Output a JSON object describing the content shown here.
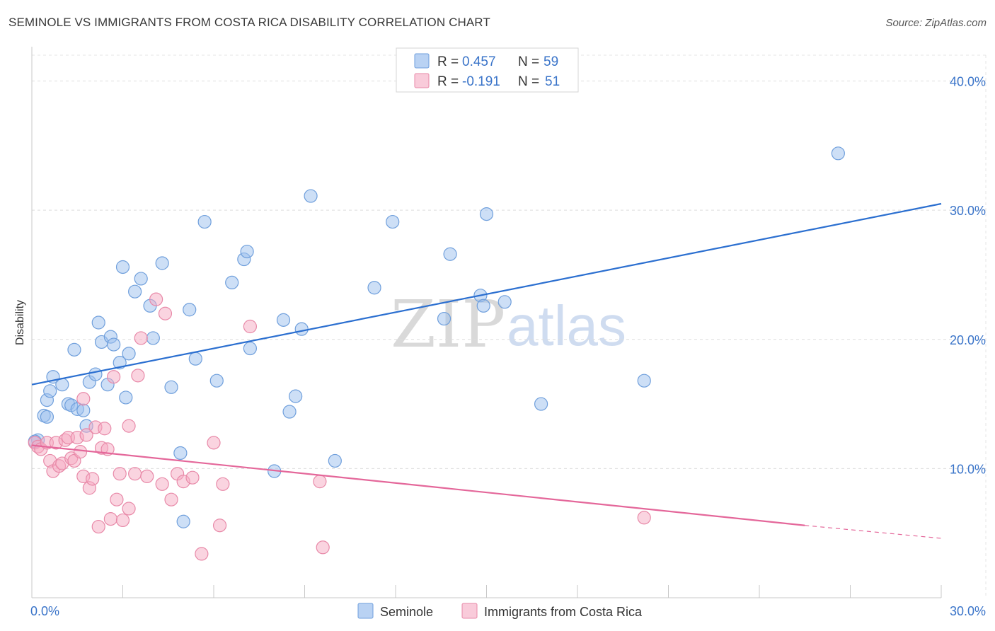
{
  "title": "SEMINOLE VS IMMIGRANTS FROM COSTA RICA DISABILITY CORRELATION CHART",
  "source": "Source: ZipAtlas.com",
  "watermark": {
    "zip": "ZIP",
    "atlas": "atlas"
  },
  "legend": {
    "rows": [
      {
        "r_label": "R =",
        "r_value": "0.457",
        "n_label": "N =",
        "n_value": "59",
        "color": "#9bbfee"
      },
      {
        "r_label": "R =",
        "r_value": "-0.191",
        "n_label": "N =",
        "n_value": "51",
        "color": "#f5a9c2"
      }
    ]
  },
  "chart_data": {
    "type": "scatter",
    "title": "SEMINOLE VS IMMIGRANTS FROM COSTA RICA DISABILITY CORRELATION CHART",
    "xlabel": "",
    "ylabel": "Disability",
    "xlim": [
      0,
      30
    ],
    "ylim": [
      0,
      42
    ],
    "x_tick_labels": [
      "0.0%",
      "30.0%"
    ],
    "y_tick_labels": [
      "10.0%",
      "20.0%",
      "30.0%",
      "40.0%"
    ],
    "y_ticks": [
      10,
      20,
      30,
      40
    ],
    "grid": true,
    "legend_position": "top-center",
    "series": [
      {
        "name": "Seminole",
        "color": "#9bbfee",
        "stroke": "#6f9fdc",
        "trend": {
          "x0": 0,
          "y0": 16.5,
          "x1": 30,
          "y1": 30.5,
          "color": "#2b6fd0"
        },
        "points": [
          [
            0.2,
            12.2
          ],
          [
            0.4,
            14.1
          ],
          [
            0.5,
            14.0
          ],
          [
            0.5,
            15.3
          ],
          [
            0.6,
            16.0
          ],
          [
            0.7,
            17.1
          ],
          [
            1.0,
            16.5
          ],
          [
            1.2,
            15.0
          ],
          [
            1.3,
            14.9
          ],
          [
            1.4,
            19.2
          ],
          [
            1.5,
            14.6
          ],
          [
            1.7,
            14.5
          ],
          [
            1.8,
            13.3
          ],
          [
            1.9,
            16.7
          ],
          [
            2.1,
            17.3
          ],
          [
            2.2,
            21.3
          ],
          [
            2.3,
            19.8
          ],
          [
            2.5,
            16.5
          ],
          [
            2.6,
            20.2
          ],
          [
            2.7,
            19.6
          ],
          [
            2.9,
            18.2
          ],
          [
            3.0,
            25.6
          ],
          [
            3.1,
            15.5
          ],
          [
            3.2,
            18.9
          ],
          [
            3.4,
            23.7
          ],
          [
            3.6,
            24.7
          ],
          [
            3.9,
            22.6
          ],
          [
            4.0,
            20.1
          ],
          [
            4.3,
            25.9
          ],
          [
            4.6,
            16.3
          ],
          [
            4.9,
            11.2
          ],
          [
            5.0,
            5.9
          ],
          [
            5.2,
            22.3
          ],
          [
            5.4,
            18.5
          ],
          [
            5.7,
            29.1
          ],
          [
            6.1,
            16.8
          ],
          [
            6.6,
            24.4
          ],
          [
            7.0,
            26.2
          ],
          [
            7.1,
            26.8
          ],
          [
            7.2,
            19.3
          ],
          [
            8.0,
            9.8
          ],
          [
            8.3,
            21.5
          ],
          [
            8.5,
            14.4
          ],
          [
            8.7,
            15.6
          ],
          [
            8.9,
            20.8
          ],
          [
            9.2,
            31.1
          ],
          [
            10.0,
            10.6
          ],
          [
            11.3,
            24.0
          ],
          [
            11.9,
            29.1
          ],
          [
            13.6,
            21.6
          ],
          [
            13.8,
            26.6
          ],
          [
            14.8,
            23.4
          ],
          [
            14.9,
            22.6
          ],
          [
            15.0,
            29.7
          ],
          [
            15.6,
            22.9
          ],
          [
            16.8,
            15.0
          ],
          [
            20.2,
            16.8
          ],
          [
            26.6,
            34.4
          ],
          [
            0.1,
            12.1
          ]
        ]
      },
      {
        "name": "Immigrants from Costa Rica",
        "color": "#f5a9c2",
        "stroke": "#e889a8",
        "trend": {
          "x0": 0,
          "y0": 11.8,
          "x1": 25.5,
          "y1": 5.6,
          "dash_x1": 30,
          "dash_y1": 4.6,
          "color": "#e4679a"
        },
        "points": [
          [
            0.1,
            12.0
          ],
          [
            0.2,
            11.7
          ],
          [
            0.3,
            11.5
          ],
          [
            0.5,
            12.0
          ],
          [
            0.6,
            10.6
          ],
          [
            0.7,
            9.8
          ],
          [
            0.8,
            12.0
          ],
          [
            0.9,
            10.2
          ],
          [
            1.0,
            10.4
          ],
          [
            1.1,
            12.2
          ],
          [
            1.2,
            12.4
          ],
          [
            1.3,
            10.8
          ],
          [
            1.4,
            10.6
          ],
          [
            1.5,
            12.4
          ],
          [
            1.6,
            11.3
          ],
          [
            1.7,
            15.4
          ],
          [
            1.7,
            9.4
          ],
          [
            1.8,
            12.6
          ],
          [
            1.9,
            8.5
          ],
          [
            2.0,
            9.2
          ],
          [
            2.1,
            13.2
          ],
          [
            2.2,
            5.5
          ],
          [
            2.3,
            11.6
          ],
          [
            2.4,
            13.1
          ],
          [
            2.5,
            11.5
          ],
          [
            2.6,
            6.1
          ],
          [
            2.7,
            17.1
          ],
          [
            2.8,
            7.6
          ],
          [
            2.9,
            9.6
          ],
          [
            3.0,
            6.0
          ],
          [
            3.2,
            6.9
          ],
          [
            3.2,
            13.3
          ],
          [
            3.4,
            9.6
          ],
          [
            3.5,
            17.2
          ],
          [
            3.6,
            20.1
          ],
          [
            3.8,
            9.4
          ],
          [
            4.1,
            23.1
          ],
          [
            4.3,
            8.8
          ],
          [
            4.4,
            22.0
          ],
          [
            4.6,
            7.6
          ],
          [
            4.8,
            9.6
          ],
          [
            5.0,
            9.0
          ],
          [
            5.3,
            9.3
          ],
          [
            5.6,
            3.4
          ],
          [
            6.0,
            12.0
          ],
          [
            6.2,
            5.6
          ],
          [
            6.3,
            8.8
          ],
          [
            7.2,
            21.0
          ],
          [
            9.5,
            9.0
          ],
          [
            9.6,
            3.9
          ],
          [
            20.2,
            6.2
          ]
        ]
      }
    ]
  },
  "bottom_legend": {
    "items": [
      {
        "label": "Seminole",
        "color": "#9bbfee"
      },
      {
        "label": "Immigrants from Costa Rica",
        "color": "#f5a9c2"
      }
    ]
  }
}
